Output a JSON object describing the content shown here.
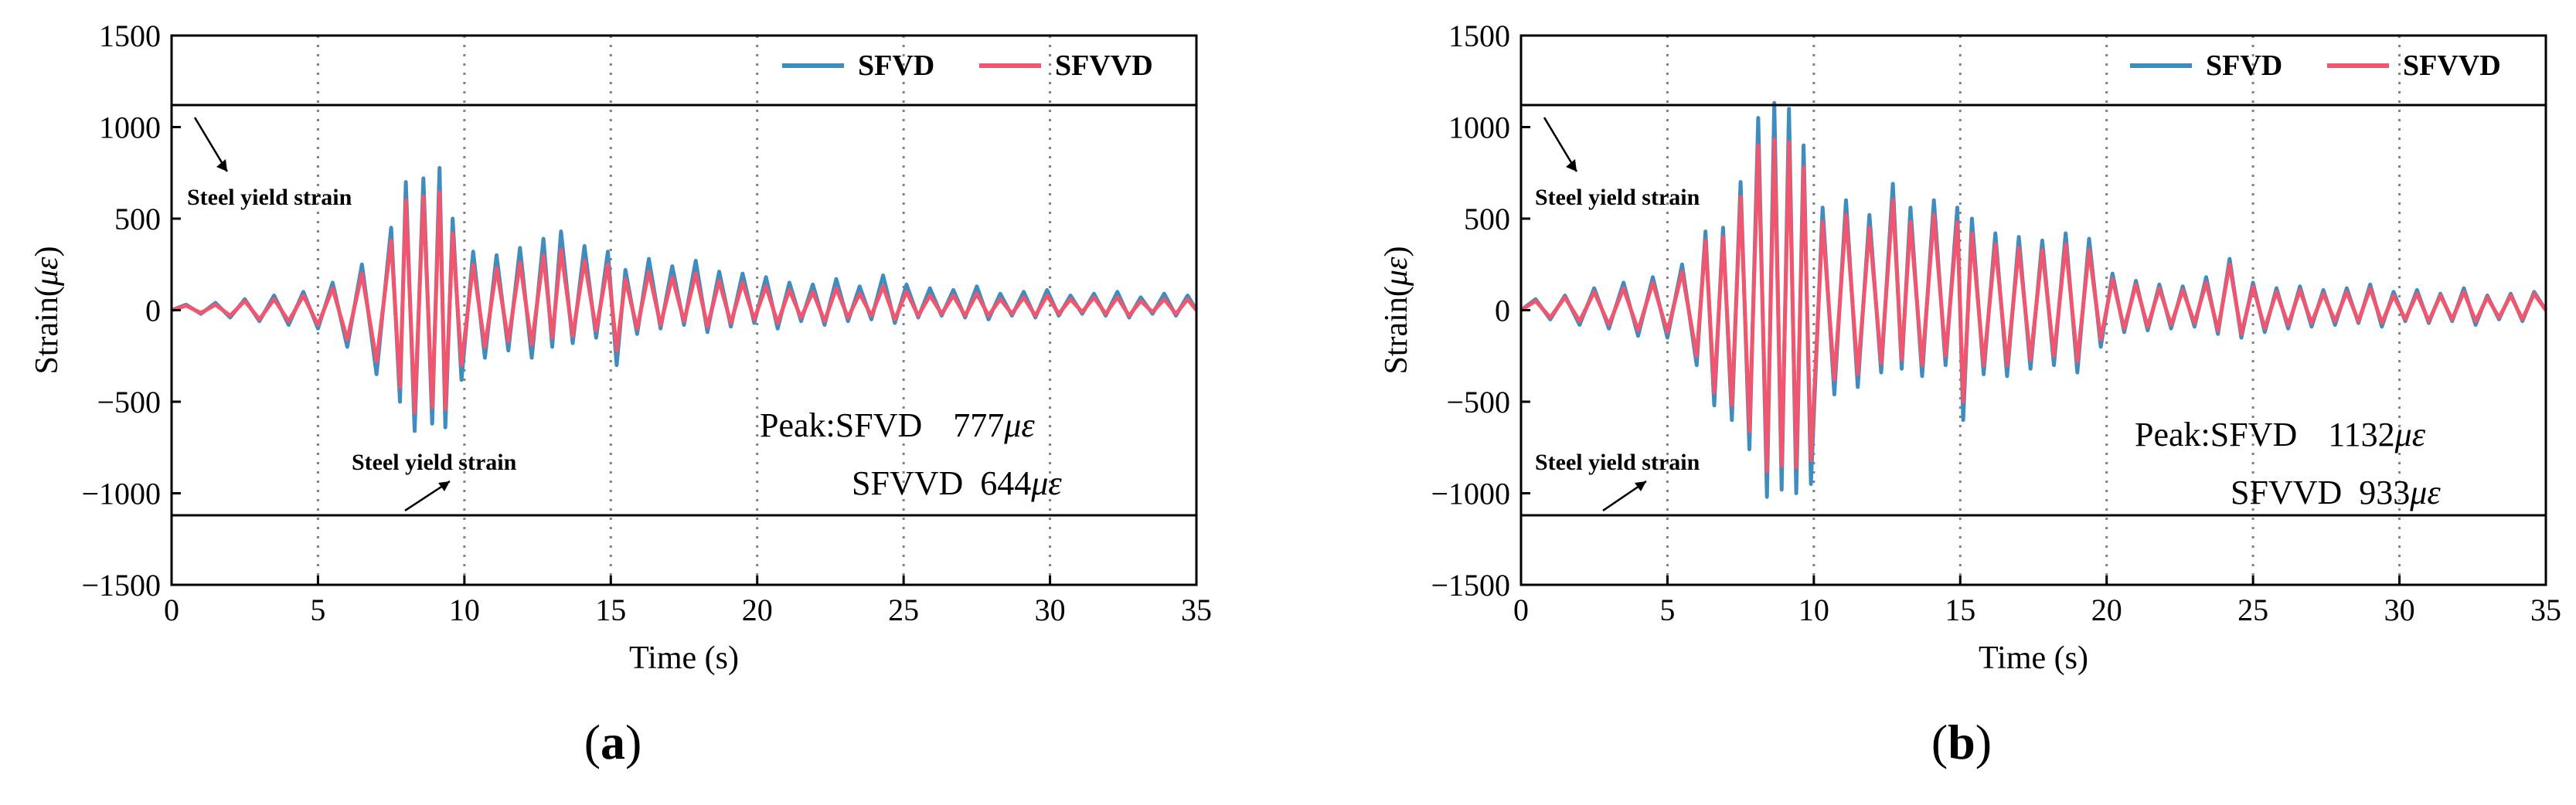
{
  "figure": {
    "colors": {
      "sfvd": "#3f8dbf",
      "sfvvd": "#f0566e",
      "axis": "#000000",
      "grid": "#808080"
    }
  },
  "chart_data": [
    {
      "type": "line",
      "panel_label": "(a)",
      "panel_letter": "a",
      "xlabel": "Time (s)",
      "ylabel_prefix": "Strain(",
      "ylabel_symbol": "με",
      "ylabel_suffix": ")",
      "xlim": [
        0,
        35
      ],
      "ylim": [
        -1500,
        1500
      ],
      "xticks": [
        0,
        5,
        10,
        15,
        20,
        25,
        30,
        35
      ],
      "yticks": [
        -1500,
        -1000,
        -500,
        0,
        500,
        1000,
        1500
      ],
      "x_gridlines": [
        5,
        10,
        15,
        20,
        25,
        30
      ],
      "yield_strain": 1120,
      "yield_label_upper": "Steel yield strain",
      "yield_label_lower": "Steel yield strain",
      "legend": [
        "SFVD",
        "SFVVD"
      ],
      "peak_prefix": "Peak:",
      "peaks": [
        {
          "name": "SFVD",
          "value": "777",
          "unit": "με"
        },
        {
          "name": "SFVVD",
          "value": "644",
          "unit": "με"
        }
      ],
      "series": [
        {
          "name": "SFVD",
          "x": [
            0,
            0.5,
            1,
            1.5,
            2,
            2.5,
            3,
            3.5,
            4,
            4.5,
            5,
            5.5,
            6,
            6.5,
            7,
            7.5,
            7.8,
            8.0,
            8.3,
            8.6,
            8.9,
            9.15,
            9.35,
            9.6,
            9.9,
            10.3,
            10.7,
            11.1,
            11.5,
            11.9,
            12.3,
            12.7,
            13.0,
            13.3,
            13.7,
            14.1,
            14.5,
            14.9,
            15.2,
            15.5,
            15.9,
            16.3,
            16.7,
            17.1,
            17.5,
            17.9,
            18.3,
            18.7,
            19.1,
            19.5,
            19.9,
            20.3,
            20.7,
            21.1,
            21.5,
            21.9,
            22.3,
            22.7,
            23.1,
            23.5,
            23.9,
            24.3,
            24.7,
            25.1,
            25.5,
            25.9,
            26.3,
            26.7,
            27.1,
            27.5,
            27.9,
            28.3,
            28.7,
            29.1,
            29.5,
            29.9,
            30.3,
            30.7,
            31.1,
            31.5,
            31.9,
            32.3,
            32.7,
            33.1,
            33.5,
            33.9,
            34.3,
            34.7,
            35
          ],
          "values": [
            0,
            30,
            -20,
            40,
            -40,
            60,
            -60,
            80,
            -80,
            100,
            -100,
            150,
            -200,
            250,
            -350,
            450,
            -500,
            700,
            -660,
            720,
            -620,
            777,
            -640,
            500,
            -380,
            320,
            -260,
            300,
            -220,
            340,
            -260,
            390,
            -200,
            430,
            -180,
            350,
            -150,
            320,
            -300,
            220,
            -130,
            280,
            -100,
            240,
            -80,
            270,
            -120,
            210,
            -90,
            200,
            -70,
            180,
            -100,
            150,
            -60,
            140,
            -80,
            170,
            -60,
            130,
            -50,
            190,
            -70,
            140,
            -40,
            120,
            -30,
            110,
            -40,
            130,
            -50,
            90,
            -30,
            100,
            -40,
            110,
            -30,
            80,
            -20,
            90,
            -30,
            100,
            -40,
            70,
            -20,
            90,
            -30,
            80,
            0
          ]
        },
        {
          "name": "SFVVD",
          "x": [
            0,
            0.5,
            1,
            1.5,
            2,
            2.5,
            3,
            3.5,
            4,
            4.5,
            5,
            5.5,
            6,
            6.5,
            7,
            7.5,
            7.8,
            8.0,
            8.3,
            8.6,
            8.9,
            9.15,
            9.35,
            9.6,
            9.9,
            10.3,
            10.7,
            11.1,
            11.5,
            11.9,
            12.3,
            12.7,
            13.0,
            13.3,
            13.7,
            14.1,
            14.5,
            14.9,
            15.2,
            15.5,
            15.9,
            16.3,
            16.7,
            17.1,
            17.5,
            17.9,
            18.3,
            18.7,
            19.1,
            19.5,
            19.9,
            20.3,
            20.7,
            21.1,
            21.5,
            21.9,
            22.3,
            22.7,
            23.1,
            23.5,
            23.9,
            24.3,
            24.7,
            25.1,
            25.5,
            25.9,
            26.3,
            26.7,
            27.1,
            27.5,
            27.9,
            28.3,
            28.7,
            29.1,
            29.5,
            29.9,
            30.3,
            30.7,
            31.1,
            31.5,
            31.9,
            32.3,
            32.7,
            33.1,
            33.5,
            33.9,
            34.3,
            34.7,
            35
          ],
          "values": [
            0,
            25,
            -15,
            30,
            -30,
            50,
            -50,
            60,
            -60,
            80,
            -80,
            120,
            -160,
            200,
            -280,
            380,
            -420,
            600,
            -560,
            620,
            -530,
            644,
            -540,
            420,
            -300,
            250,
            -200,
            230,
            -170,
            260,
            -190,
            300,
            -150,
            330,
            -140,
            270,
            -110,
            250,
            -220,
            170,
            -100,
            210,
            -80,
            180,
            -60,
            200,
            -90,
            160,
            -70,
            150,
            -50,
            130,
            -70,
            110,
            -40,
            100,
            -60,
            120,
            -40,
            90,
            -30,
            130,
            -50,
            100,
            -30,
            80,
            -20,
            80,
            -30,
            90,
            -30,
            60,
            -20,
            70,
            -30,
            80,
            -20,
            60,
            -10,
            70,
            -20,
            70,
            -30,
            50,
            -10,
            60,
            -20,
            60,
            0
          ]
        }
      ]
    },
    {
      "type": "line",
      "panel_label": "(b)",
      "panel_letter": "b",
      "xlabel": "Time (s)",
      "ylabel_prefix": "Strain(",
      "ylabel_symbol": "με",
      "ylabel_suffix": ")",
      "xlim": [
        0,
        35
      ],
      "ylim": [
        -1500,
        1500
      ],
      "xticks": [
        0,
        5,
        10,
        15,
        20,
        25,
        30,
        35
      ],
      "yticks": [
        -1500,
        -1000,
        -500,
        0,
        500,
        1000,
        1500
      ],
      "x_gridlines": [
        5,
        10,
        15,
        20,
        25,
        30
      ],
      "yield_strain": 1120,
      "yield_label_upper": "Steel yield strain",
      "yield_label_lower": "Steel yield strain",
      "legend": [
        "SFVD",
        "SFVVD"
      ],
      "peak_prefix": "Peak:",
      "peaks": [
        {
          "name": "SFVD",
          "value": "1132",
          "unit": "με"
        },
        {
          "name": "SFVVD",
          "value": "933",
          "unit": "με"
        }
      ],
      "series": [
        {
          "name": "SFVD",
          "x": [
            0,
            0.5,
            1,
            1.5,
            2,
            2.5,
            3,
            3.5,
            4,
            4.5,
            5,
            5.5,
            6,
            6.3,
            6.6,
            6.9,
            7.2,
            7.5,
            7.8,
            8.1,
            8.4,
            8.65,
            8.9,
            9.15,
            9.4,
            9.65,
            9.9,
            10.3,
            10.7,
            11.1,
            11.5,
            11.9,
            12.3,
            12.7,
            13.0,
            13.3,
            13.7,
            14.1,
            14.5,
            14.9,
            15.1,
            15.4,
            15.8,
            16.2,
            16.6,
            17.0,
            17.4,
            17.8,
            18.2,
            18.6,
            19.0,
            19.4,
            19.8,
            20.2,
            20.6,
            21.0,
            21.4,
            21.8,
            22.2,
            22.6,
            23.0,
            23.4,
            23.8,
            24.2,
            24.6,
            25.0,
            25.4,
            25.8,
            26.2,
            26.6,
            27.0,
            27.4,
            27.8,
            28.2,
            28.6,
            29.0,
            29.4,
            29.8,
            30.2,
            30.6,
            31.0,
            31.4,
            31.8,
            32.2,
            32.6,
            33.0,
            33.4,
            33.8,
            34.2,
            34.6,
            35
          ],
          "values": [
            0,
            60,
            -50,
            80,
            -80,
            120,
            -100,
            150,
            -140,
            180,
            -150,
            250,
            -300,
            430,
            -520,
            450,
            -600,
            700,
            -760,
            1050,
            -1020,
            1132,
            -980,
            1100,
            -1000,
            900,
            -950,
            560,
            -460,
            600,
            -420,
            520,
            -340,
            690,
            -320,
            560,
            -360,
            600,
            -300,
            560,
            -600,
            500,
            -350,
            420,
            -360,
            400,
            -320,
            380,
            -300,
            420,
            -340,
            390,
            -200,
            200,
            -120,
            160,
            -110,
            140,
            -100,
            130,
            -90,
            180,
            -130,
            280,
            -150,
            150,
            -120,
            120,
            -100,
            130,
            -90,
            110,
            -80,
            120,
            -70,
            140,
            -90,
            100,
            -60,
            110,
            -70,
            90,
            -60,
            120,
            -80,
            80,
            -50,
            90,
            -60,
            100,
            0
          ]
        },
        {
          "name": "SFVVD",
          "x": [
            0,
            0.5,
            1,
            1.5,
            2,
            2.5,
            3,
            3.5,
            4,
            4.5,
            5,
            5.5,
            6,
            6.3,
            6.6,
            6.9,
            7.2,
            7.5,
            7.8,
            8.1,
            8.4,
            8.65,
            8.9,
            9.15,
            9.4,
            9.65,
            9.9,
            10.3,
            10.7,
            11.1,
            11.5,
            11.9,
            12.3,
            12.7,
            13.0,
            13.3,
            13.7,
            14.1,
            14.5,
            14.9,
            15.1,
            15.4,
            15.8,
            16.2,
            16.6,
            17.0,
            17.4,
            17.8,
            18.2,
            18.6,
            19.0,
            19.4,
            19.8,
            20.2,
            20.6,
            21.0,
            21.4,
            21.8,
            22.2,
            22.6,
            23.0,
            23.4,
            23.8,
            24.2,
            24.6,
            25.0,
            25.4,
            25.8,
            26.2,
            26.6,
            27.0,
            27.4,
            27.8,
            28.2,
            28.6,
            29.0,
            29.4,
            29.8,
            30.2,
            30.6,
            31.0,
            31.4,
            31.8,
            32.2,
            32.6,
            33.0,
            33.4,
            33.8,
            34.2,
            34.6,
            35
          ],
          "values": [
            0,
            50,
            -40,
            70,
            -60,
            100,
            -80,
            120,
            -110,
            150,
            -120,
            210,
            -250,
            380,
            -450,
            400,
            -520,
            620,
            -660,
            900,
            -880,
            933,
            -850,
            920,
            -860,
            780,
            -820,
            480,
            -380,
            520,
            -350,
            450,
            -290,
            600,
            -270,
            480,
            -300,
            520,
            -250,
            480,
            -500,
            420,
            -300,
            360,
            -300,
            340,
            -270,
            330,
            -250,
            360,
            -280,
            330,
            -160,
            170,
            -100,
            140,
            -90,
            120,
            -80,
            110,
            -70,
            150,
            -110,
            250,
            -130,
            130,
            -100,
            100,
            -80,
            110,
            -70,
            90,
            -60,
            100,
            -60,
            120,
            -70,
            80,
            -50,
            90,
            -60,
            80,
            -50,
            100,
            -60,
            70,
            -40,
            80,
            -50,
            90,
            0
          ]
        }
      ]
    }
  ]
}
